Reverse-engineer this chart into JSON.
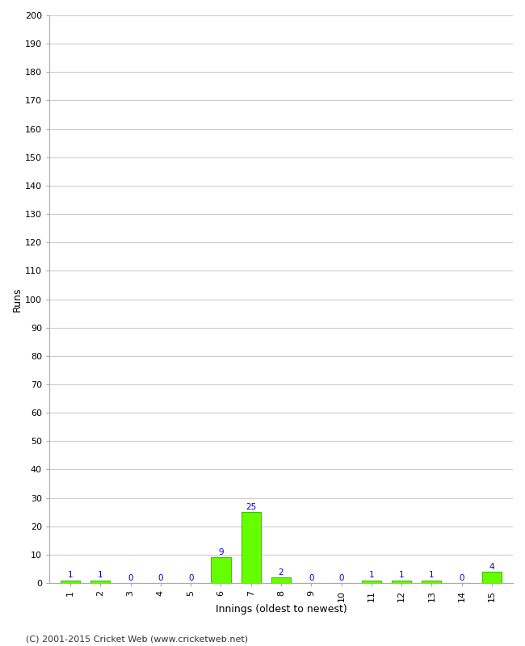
{
  "xlabel": "Innings (oldest to newest)",
  "ylabel": "Runs",
  "innings": [
    1,
    2,
    3,
    4,
    5,
    6,
    7,
    8,
    9,
    10,
    11,
    12,
    13,
    14,
    15
  ],
  "values": [
    1,
    1,
    0,
    0,
    0,
    9,
    25,
    2,
    0,
    0,
    1,
    1,
    1,
    0,
    4
  ],
  "bar_color": "#66ff00",
  "bar_edge_color": "#44bb00",
  "label_color": "#0000cc",
  "ylim": [
    0,
    200
  ],
  "yticks": [
    0,
    10,
    20,
    30,
    40,
    50,
    60,
    70,
    80,
    90,
    100,
    110,
    120,
    130,
    140,
    150,
    160,
    170,
    180,
    190,
    200
  ],
  "footer": "(C) 2001-2015 Cricket Web (www.cricketweb.net)",
  "background_color": "#ffffff",
  "plot_bg_color": "#ffffff",
  "grid_color": "#cccccc",
  "label_fontsize": 7.5,
  "axis_fontsize": 8,
  "footer_fontsize": 8
}
